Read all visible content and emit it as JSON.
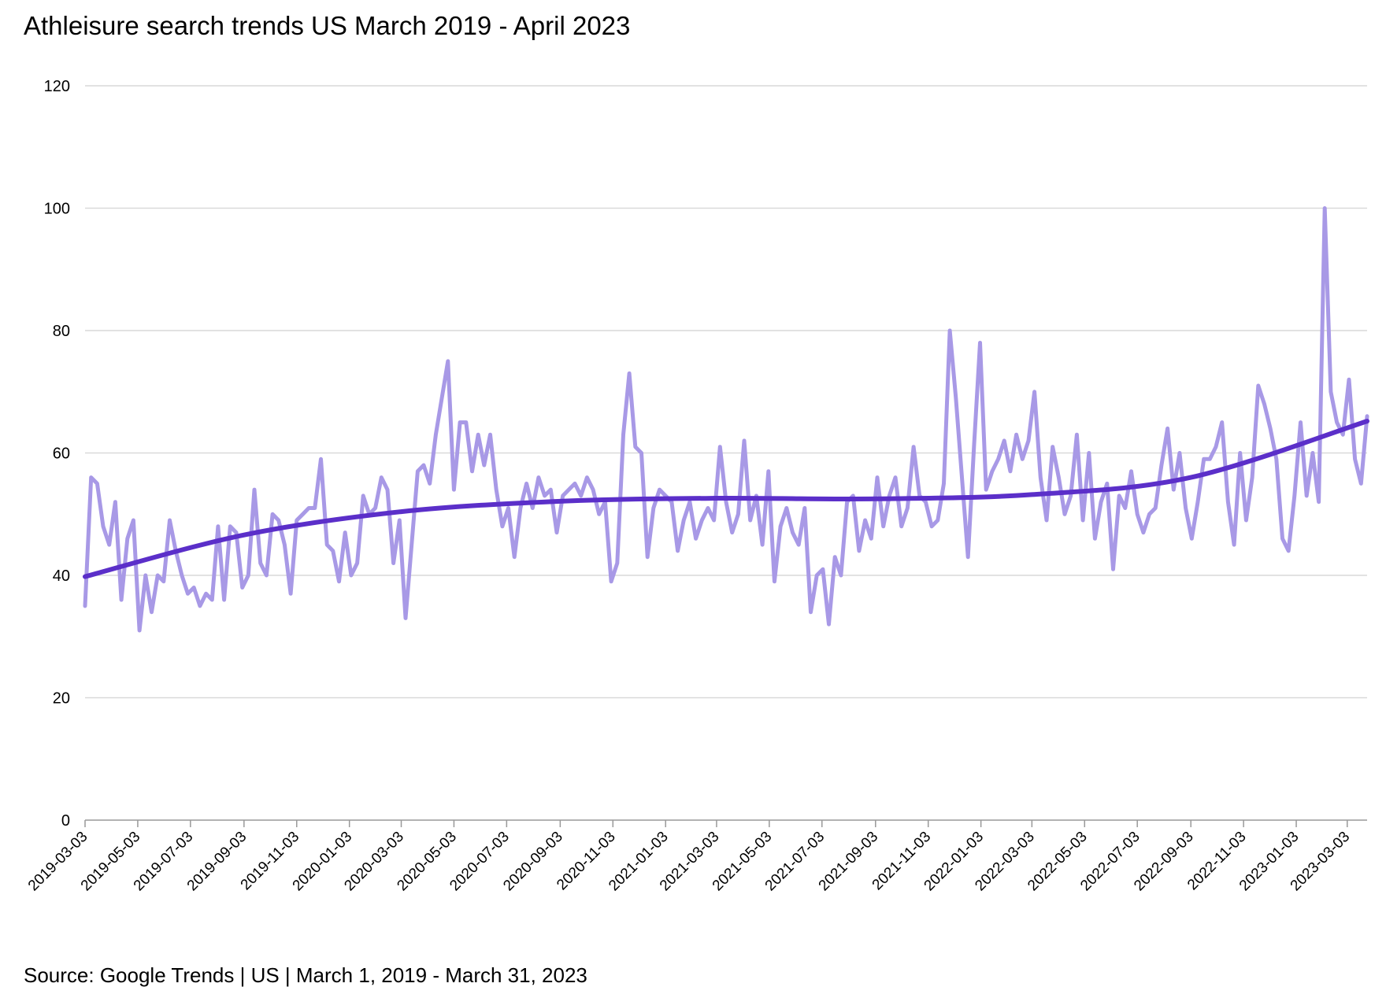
{
  "title": "Athleisure search trends US March 2019 - April 2023",
  "source": "Source: Google Trends | US | March 1, 2019 - March 31, 2023",
  "chart_data": {
    "type": "line",
    "title": "Athleisure search trends US March 2019 - April 2023",
    "xlabel": "",
    "ylabel": "",
    "ylim": [
      0,
      120
    ],
    "yticks": [
      0,
      20,
      40,
      60,
      80,
      100,
      120
    ],
    "xticks": [
      "2019-03-03",
      "2019-05-03",
      "2019-07-03",
      "2019-09-03",
      "2019-11-03",
      "2020-01-03",
      "2020-03-03",
      "2020-05-03",
      "2020-07-03",
      "2020-09-03",
      "2020-11-03",
      "2021-01-03",
      "2021-03-03",
      "2021-05-03",
      "2021-07-03",
      "2021-09-03",
      "2021-11-03",
      "2022-01-03",
      "2022-03-03",
      "2022-05-03",
      "2022-07-03",
      "2022-09-03",
      "2022-11-03",
      "2023-01-03",
      "2023-03-03"
    ],
    "xlim": [
      "2019-03-03",
      "2023-03-26"
    ],
    "grid": true,
    "legend": "none",
    "colors": {
      "series": "#a899e6",
      "trend": "#5b2fc9",
      "grid": "#d9d9d9",
      "axis": "#999999"
    },
    "series": [
      {
        "kind": "weekly",
        "x_start": "2019-03-03",
        "x_step_days": 7,
        "values": [
          35,
          56,
          55,
          48,
          45,
          52,
          36,
          46,
          49,
          31,
          40,
          34,
          40,
          39,
          49,
          44,
          40,
          37,
          38,
          35,
          37,
          36,
          48,
          36,
          48,
          47,
          38,
          40,
          54,
          42,
          40,
          50,
          49,
          45,
          37,
          49,
          50,
          51,
          51,
          59,
          45,
          44,
          39,
          47,
          40,
          42,
          53,
          50,
          51,
          56,
          54,
          42,
          49,
          33,
          45,
          57,
          58,
          55,
          63,
          69,
          75,
          54,
          65,
          65,
          57,
          63,
          58,
          63,
          54,
          48,
          51,
          43,
          51,
          55,
          51,
          56,
          53,
          54,
          47,
          53,
          54,
          55,
          53,
          56,
          54,
          50,
          52,
          39,
          42,
          63,
          73,
          61,
          60,
          43,
          51,
          54,
          53,
          52,
          44,
          49,
          52,
          46,
          49,
          51,
          49,
          61,
          52,
          47,
          50,
          62,
          49,
          53,
          45,
          57,
          39,
          48,
          51,
          47,
          45,
          51,
          34,
          40,
          41,
          32,
          43,
          40,
          52,
          53,
          44,
          49,
          46,
          56,
          48,
          53,
          56,
          48,
          51,
          61,
          53,
          52,
          48,
          49,
          55,
          80,
          69,
          56,
          43,
          61,
          78,
          54,
          57,
          59,
          62,
          57,
          63,
          59,
          62,
          70,
          56,
          49,
          61,
          56,
          50,
          53,
          63,
          49,
          60,
          46,
          52,
          55,
          41,
          53,
          51,
          57,
          50,
          47,
          50,
          51,
          58,
          64,
          54,
          60,
          51,
          46,
          52,
          59,
          59,
          61,
          65,
          52,
          45,
          60,
          49,
          56,
          71,
          68,
          64,
          59,
          46,
          44,
          53,
          65,
          53,
          60,
          52,
          100,
          70,
          65,
          63,
          72,
          59,
          55,
          66
        ]
      },
      {
        "kind": "trend",
        "x": [
          "2019-03-03",
          "2019-09-03",
          "2020-03-03",
          "2020-09-03",
          "2021-03-03",
          "2021-09-03",
          "2022-03-03",
          "2022-09-03",
          "2023-03-26"
        ],
        "values": [
          39.8,
          46.6,
          50.4,
          52.1,
          52.6,
          52.5,
          53.2,
          56.0,
          65.2
        ]
      }
    ]
  }
}
